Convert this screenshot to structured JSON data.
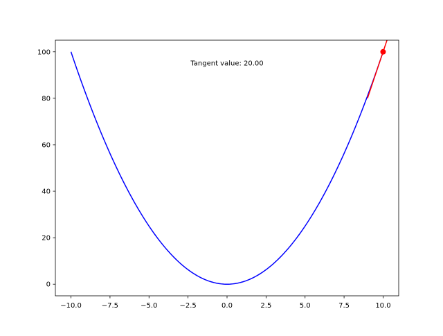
{
  "chart_data": {
    "type": "line",
    "title": "",
    "xlabel": "",
    "ylabel": "",
    "xlim": [
      -11.0,
      11.0
    ],
    "ylim": [
      -5.0,
      105.0
    ],
    "grid": false,
    "xticks": [
      -10.0,
      -7.5,
      -5.0,
      -2.5,
      0.0,
      2.5,
      5.0,
      7.5,
      10.0
    ],
    "xtick_labels": [
      "−10.0",
      "−7.5",
      "−5.0",
      "−2.5",
      "0.0",
      "2.5",
      "5.0",
      "7.5",
      "10.0"
    ],
    "yticks": [
      0,
      20,
      40,
      60,
      80,
      100
    ],
    "ytick_labels": [
      "0",
      "20",
      "40",
      "60",
      "80",
      "100"
    ],
    "series": [
      {
        "function": "y = x^2",
        "x_range": [
          -10,
          10
        ],
        "color": "#0000ff"
      },
      {
        "function": "y = 20x - 100",
        "x_range": [
          9,
          11
        ],
        "color": "#ff0000"
      }
    ],
    "points": [
      {
        "x": 10,
        "y": 100,
        "color": "#ff0000"
      }
    ],
    "annotation": {
      "text": "Tangent value: 20.00",
      "x": 0,
      "y": 95
    }
  }
}
